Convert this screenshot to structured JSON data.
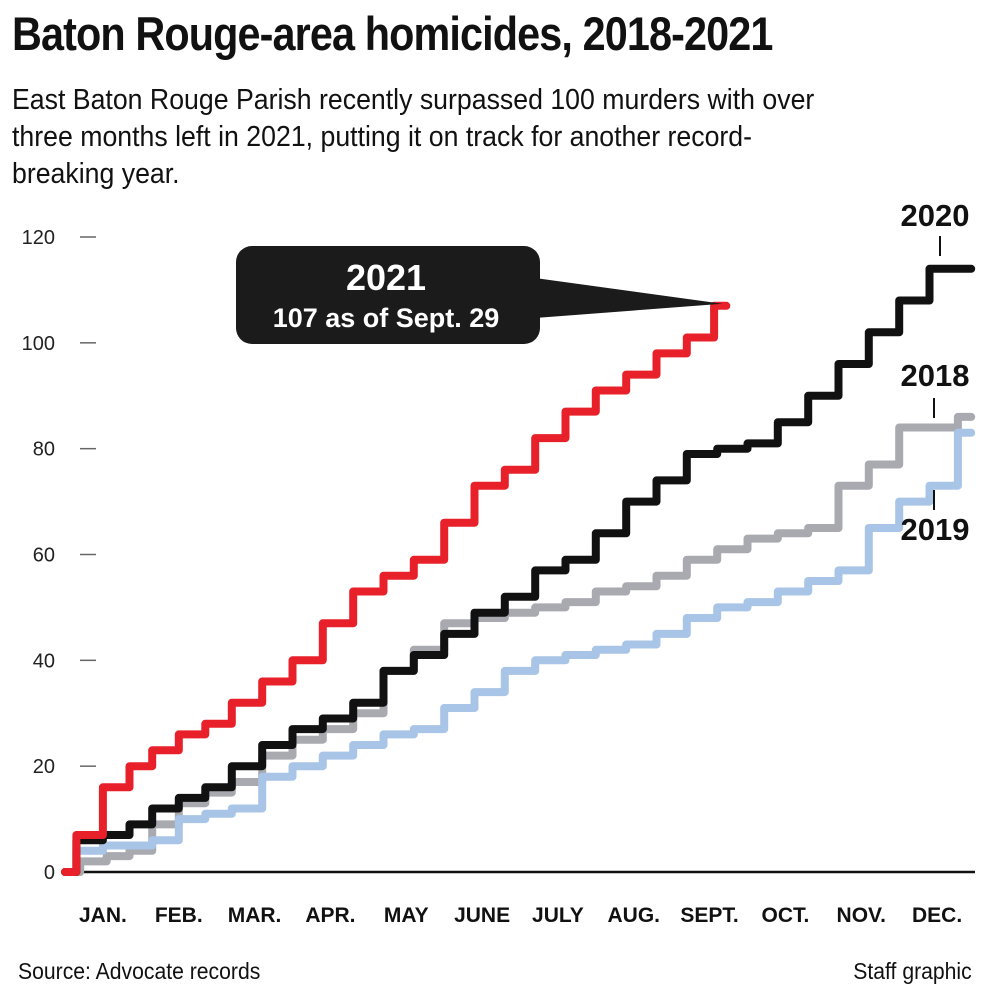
{
  "header": {
    "title": "Baton Rouge-area homicides, 2018-2021",
    "subtitle": "East Baton Rouge Parish recently surpassed 100 murders with over three months left in 2021, putting it on track for another record-breaking year."
  },
  "footer": {
    "source": "Source: Advocate records",
    "credit": "Staff graphic"
  },
  "callout": {
    "title": "2021",
    "subtitle": "107 as of Sept. 29"
  },
  "chart_data": {
    "type": "line",
    "title": "Baton Rouge-area homicides, 2018-2021",
    "xlabel": "",
    "ylabel": "",
    "xlim": [
      0,
      12
    ],
    "ylim": [
      0,
      120
    ],
    "yticks": [
      0,
      20,
      40,
      60,
      80,
      100,
      120
    ],
    "grid": false,
    "month_labels": [
      "JAN.",
      "FEB.",
      "MAR.",
      "APR.",
      "MAY",
      "JUNE",
      "JULY",
      "AUG.",
      "SEPT.",
      "OCT.",
      "NOV.",
      "DEC."
    ],
    "series": [
      {
        "name": "2018",
        "color": "#a9aab0",
        "x": [
          0,
          0.4,
          0.7,
          1.0,
          1.3,
          1.7,
          2.0,
          2.4,
          2.8,
          3.2,
          3.6,
          4.0,
          4.4,
          4.8,
          5.2,
          5.6,
          6.0,
          6.4,
          6.8,
          7.2,
          7.6,
          8.0,
          8.4,
          8.8,
          9.2,
          9.6,
          10.0,
          10.4,
          10.8,
          11.2,
          11.6,
          11.95
        ],
        "y": [
          0,
          2,
          3,
          4,
          9,
          13,
          15,
          17,
          22,
          25,
          27,
          30,
          38,
          42,
          47,
          48,
          49,
          50,
          51,
          53,
          54,
          56,
          59,
          61,
          63,
          64,
          65,
          73,
          77,
          84,
          84,
          86
        ]
      },
      {
        "name": "2019",
        "color": "#a8c4e6",
        "x": [
          0,
          0.3,
          0.7,
          1.0,
          1.3,
          1.7,
          2.0,
          2.4,
          2.8,
          3.2,
          3.6,
          4.0,
          4.4,
          4.8,
          5.2,
          5.6,
          6.0,
          6.4,
          6.8,
          7.2,
          7.6,
          8.0,
          8.4,
          8.8,
          9.2,
          9.6,
          10.0,
          10.4,
          10.8,
          11.2,
          11.6,
          11.95
        ],
        "y": [
          0,
          4,
          5,
          5,
          6,
          10,
          11,
          12,
          18,
          20,
          22,
          24,
          26,
          27,
          31,
          34,
          38,
          40,
          41,
          42,
          43,
          45,
          48,
          50,
          51,
          53,
          55,
          57,
          65,
          70,
          73,
          83
        ]
      },
      {
        "name": "2020",
        "color": "#111111",
        "x": [
          0,
          0.3,
          0.7,
          1.0,
          1.3,
          1.7,
          2.0,
          2.4,
          2.8,
          3.2,
          3.6,
          4.0,
          4.4,
          4.8,
          5.2,
          5.6,
          6.0,
          6.4,
          6.8,
          7.2,
          7.6,
          8.0,
          8.4,
          8.8,
          9.2,
          9.6,
          10.0,
          10.4,
          10.8,
          11.2,
          11.6,
          11.95
        ],
        "y": [
          0,
          6,
          7,
          9,
          12,
          14,
          16,
          20,
          24,
          27,
          29,
          32,
          38,
          41,
          45,
          49,
          52,
          57,
          59,
          64,
          70,
          74,
          79,
          80,
          81,
          85,
          90,
          96,
          102,
          108,
          114,
          114
        ]
      },
      {
        "name": "2021",
        "color": "#e8202a",
        "x": [
          0,
          0.3,
          0.7,
          1.0,
          1.3,
          1.7,
          2.0,
          2.4,
          2.8,
          3.2,
          3.6,
          4.0,
          4.4,
          4.8,
          5.2,
          5.6,
          6.0,
          6.4,
          6.8,
          7.2,
          7.6,
          8.0,
          8.4,
          8.72
        ],
        "y": [
          0,
          7,
          16,
          20,
          23,
          26,
          28,
          32,
          36,
          40,
          47,
          53,
          56,
          59,
          66,
          73,
          76,
          82,
          87,
          91,
          94,
          98,
          101,
          107
        ]
      }
    ]
  }
}
